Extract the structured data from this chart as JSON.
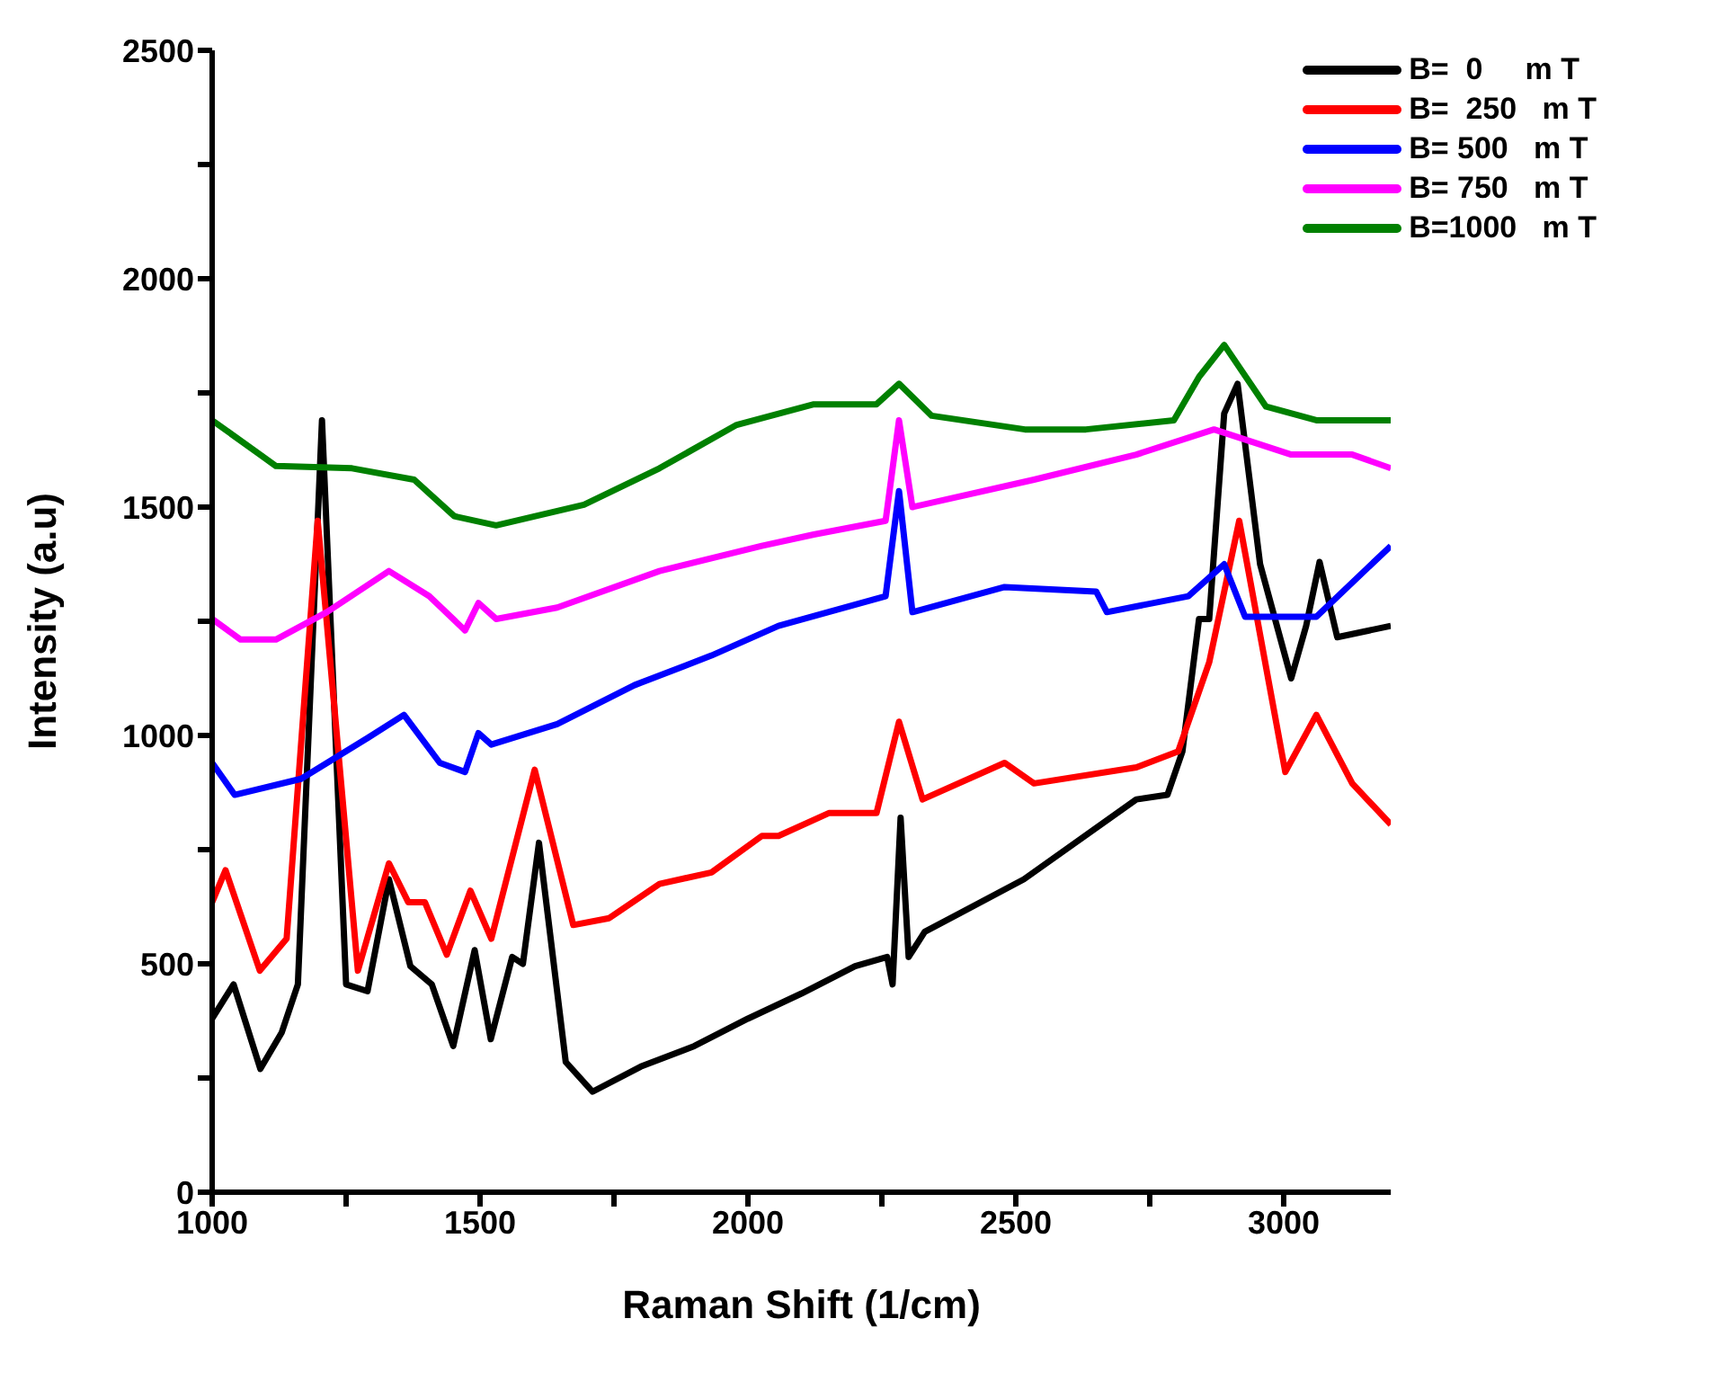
{
  "chart_data": {
    "type": "line",
    "xlabel": "Raman Shift (1/cm)",
    "ylabel": "Intensity (a.u)",
    "xlim": [
      1000,
      3200
    ],
    "xticks": [
      1000,
      {
        "value": 1250,
        "label": null
      },
      1500,
      {
        "value": 1750,
        "label": null
      },
      2000,
      {
        "value": 2250,
        "label": null
      },
      2500,
      {
        "value": 2750,
        "label": null
      },
      3000
    ],
    "ylim": [
      0,
      2500
    ],
    "yticks": [
      0,
      {
        "value": 250,
        "label": null
      },
      500,
      {
        "value": 750,
        "label": null
      },
      1000,
      {
        "value": 1250,
        "label": null
      },
      1500,
      {
        "value": 1750,
        "label": null
      },
      2000,
      {
        "value": 2250,
        "label": null
      },
      2500
    ],
    "legend": "top right",
    "line_style": "solid",
    "marker": "none",
    "series": [
      {
        "name": "B=  0     m T",
        "color": "#000000",
        "x": [
          1000,
          1040,
          1090,
          1130,
          1160,
          1205,
          1250,
          1290,
          1330,
          1370,
          1410,
          1450,
          1490,
          1520,
          1560,
          1580,
          1610,
          1660,
          1710,
          1800,
          1900,
          2000,
          2100,
          2200,
          2260,
          2270,
          2285,
          2300,
          2330,
          2515,
          2725,
          2783,
          2811,
          2842,
          2861,
          2889,
          2914,
          2956,
          3014,
          3042,
          3067,
          3100,
          3200
        ],
        "values": [
          380,
          455,
          270,
          350,
          455,
          1690,
          455,
          440,
          685,
          495,
          455,
          320,
          530,
          335,
          515,
          500,
          765,
          285,
          220,
          275,
          320,
          380,
          435,
          495,
          515,
          455,
          820,
          515,
          570,
          685,
          860,
          870,
          965,
          1255,
          1255,
          1705,
          1770,
          1375,
          1125,
          1240,
          1380,
          1215,
          1240
        ]
      },
      {
        "name": "B=  250   m T",
        "color": "#ff0000",
        "x": [
          1000,
          1025,
          1089,
          1139,
          1197,
          1272,
          1330,
          1366,
          1397,
          1438,
          1482,
          1521,
          1602,
          1674,
          1741,
          1835,
          1932,
          2026,
          2057,
          2151,
          2240,
          2282,
          2326,
          2479,
          2534,
          2725,
          2803,
          2861,
          2917,
          3003,
          3061,
          3128,
          3200
        ],
        "values": [
          635,
          705,
          485,
          555,
          1470,
          485,
          720,
          635,
          635,
          520,
          660,
          555,
          925,
          585,
          600,
          675,
          700,
          780,
          780,
          830,
          830,
          1030,
          860,
          940,
          895,
          930,
          965,
          1160,
          1470,
          920,
          1045,
          895,
          805
        ]
      },
      {
        "name": "B= 500   m T",
        "color": "#0000ff",
        "x": [
          1000,
          1042,
          1166,
          1291,
          1358,
          1425,
          1472,
          1497,
          1521,
          1644,
          1788,
          1932,
          2057,
          2257,
          2282,
          2307,
          2479,
          2650,
          2670,
          2822,
          2889,
          2928,
          3061,
          3200
        ],
        "values": [
          940,
          870,
          905,
          995,
          1045,
          940,
          920,
          1005,
          980,
          1025,
          1110,
          1175,
          1240,
          1305,
          1535,
          1270,
          1325,
          1315,
          1270,
          1305,
          1375,
          1260,
          1260,
          1415
        ]
      },
      {
        "name": "B= 750   m T",
        "color": "#ff00ff",
        "x": [
          1000,
          1053,
          1119,
          1214,
          1330,
          1405,
          1472,
          1497,
          1530,
          1644,
          1835,
          2026,
          2123,
          2257,
          2282,
          2307,
          2534,
          2725,
          2870,
          3014,
          3128,
          3200
        ],
        "values": [
          1255,
          1210,
          1210,
          1270,
          1360,
          1305,
          1230,
          1290,
          1255,
          1280,
          1360,
          1415,
          1440,
          1470,
          1690,
          1500,
          1560,
          1615,
          1670,
          1615,
          1615,
          1585
        ]
      },
      {
        "name": "B=1000   m T",
        "color": "#008000",
        "x": [
          1000,
          1119,
          1261,
          1377,
          1452,
          1530,
          1694,
          1835,
          1979,
          2123,
          2240,
          2282,
          2343,
          2517,
          2631,
          2795,
          2842,
          2889,
          2967,
          3061,
          3200
        ],
        "values": [
          1690,
          1590,
          1585,
          1560,
          1480,
          1460,
          1505,
          1585,
          1680,
          1725,
          1725,
          1770,
          1700,
          1670,
          1670,
          1690,
          1785,
          1855,
          1720,
          1690,
          1690
        ]
      }
    ]
  }
}
